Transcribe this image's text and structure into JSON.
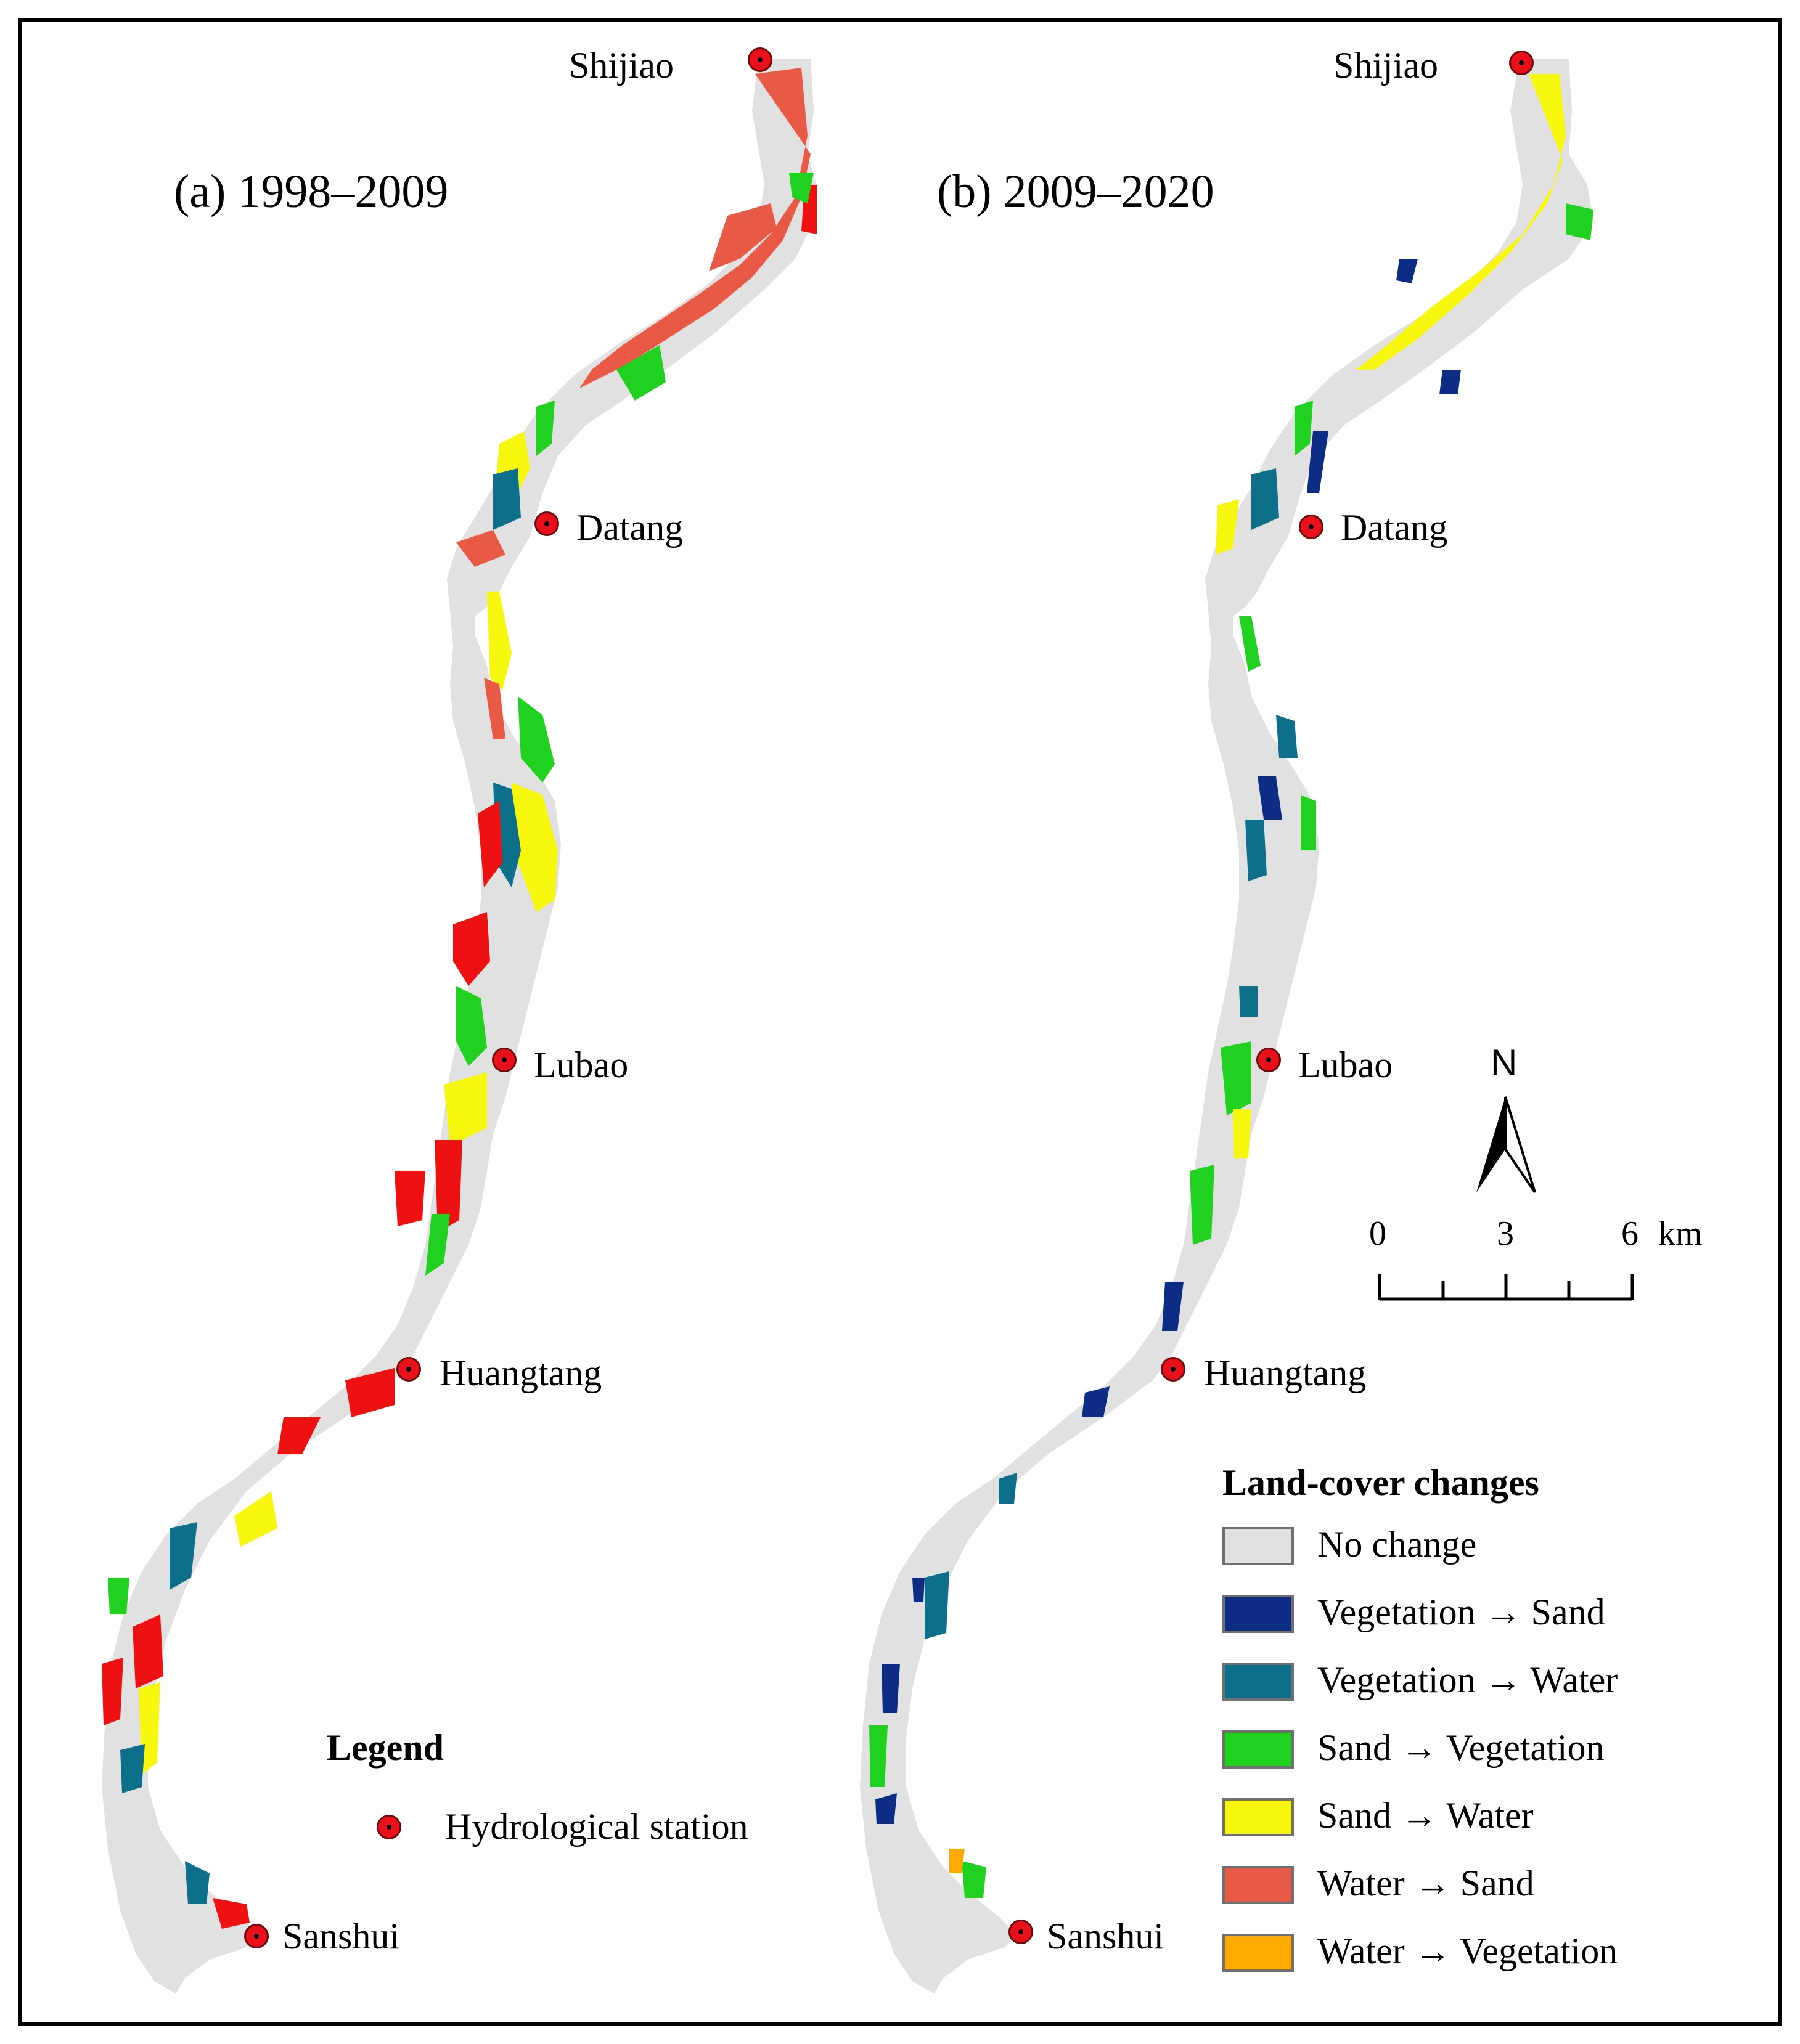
{
  "panels": {
    "a": {
      "title": "(a) 1998–2009"
    },
    "b": {
      "title": "(b) 2009–2020"
    }
  },
  "stations": {
    "shijiao": "Shijiao",
    "datang": "Datang",
    "lubao": "Lubao",
    "huangtang": "Huangtang",
    "sanshui": "Sanshui"
  },
  "legend": {
    "title": "Legend",
    "hydrological_station": "Hydrological station"
  },
  "landcover_legend": {
    "title": "Land-cover changes",
    "items": [
      {
        "label": "No change",
        "color": "#e1e1e1"
      },
      {
        "label": "Vegetation → Sand",
        "color": "#0c2d83"
      },
      {
        "label": "Vegetation → Water",
        "color": "#0d6f8a"
      },
      {
        "label": "Sand → Vegetation",
        "color": "#21d11f"
      },
      {
        "label": "Sand → Water",
        "color": "#f7f60f"
      },
      {
        "label": "Water → Sand",
        "color": "#e85a45"
      },
      {
        "label": "Water → Vegetation",
        "color": "#ffaa00"
      }
    ]
  },
  "north_arrow": {
    "label": "N"
  },
  "scale_bar": {
    "ticks": [
      "0",
      "3",
      "6"
    ],
    "unit": "km"
  },
  "colors": {
    "no_change": "#e1e1e1",
    "station_fill": "#e8101a",
    "bright_red": "#ee1111"
  }
}
